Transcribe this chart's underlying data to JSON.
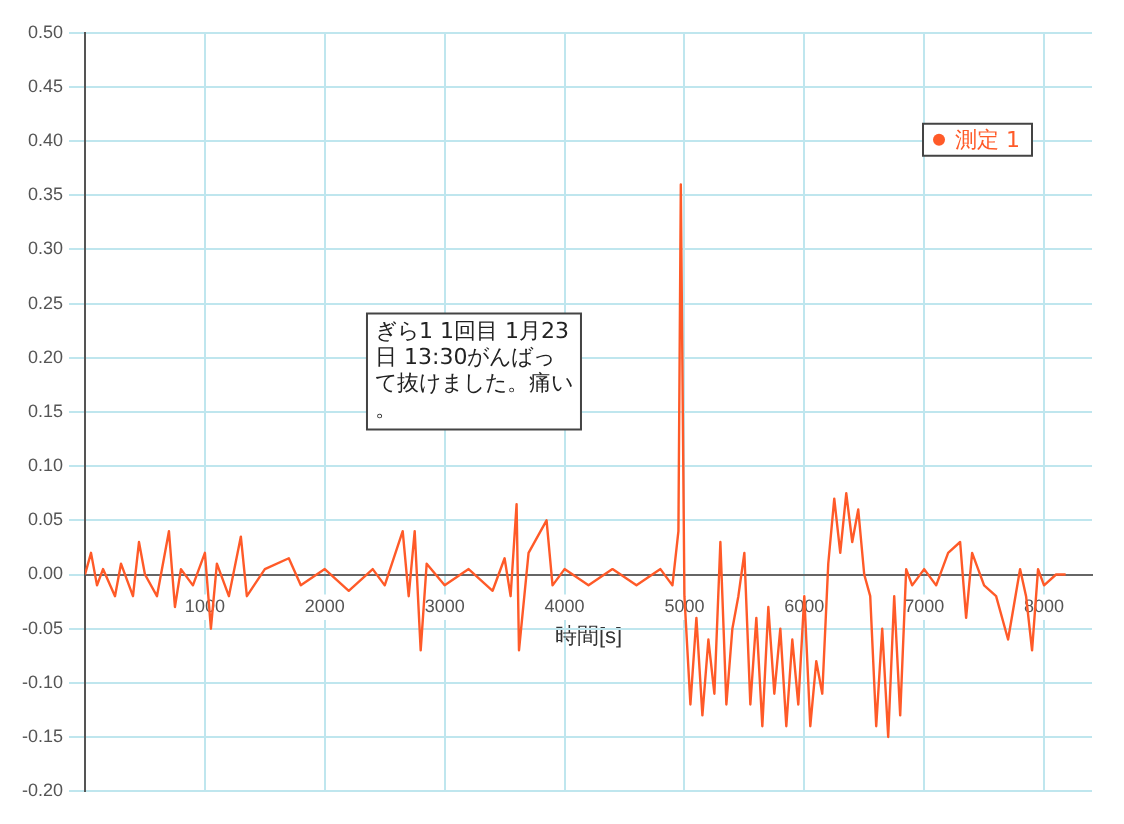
{
  "chart_data": {
    "type": "line",
    "xlabel": "時間[s]",
    "annotations": [
      "ぎら1 1回目 1月23日 13:30がんばって抜けました。痛い。"
    ],
    "xlim": [
      0,
      8400
    ],
    "xticks": [
      1000,
      2000,
      3000,
      4000,
      5000,
      6000,
      7000,
      8000
    ],
    "ylim": [
      -0.2,
      0.5
    ],
    "yticks": [
      {
        "value": -0.2,
        "label": "-0.20"
      },
      {
        "value": -0.15,
        "label": "-0.15"
      },
      {
        "value": -0.1,
        "label": "-0.10"
      },
      {
        "value": -0.05,
        "label": "-0.05"
      },
      {
        "value": 0,
        "label": "0.00"
      },
      {
        "value": 0.05,
        "label": "0.05"
      },
      {
        "value": 0.1,
        "label": "0.10"
      },
      {
        "value": 0.15,
        "label": "0.15"
      },
      {
        "value": 0.2,
        "label": "0.20"
      },
      {
        "value": 0.25,
        "label": "0.25"
      },
      {
        "value": 0.3,
        "label": "0.30"
      },
      {
        "value": 0.35,
        "label": "0.35"
      },
      {
        "value": 0.4,
        "label": "0.40"
      },
      {
        "value": 0.45,
        "label": "0.45"
      },
      {
        "value": 0.5,
        "label": "0.50"
      }
    ],
    "grid": true,
    "legend": "top right",
    "series": [
      {
        "name": "測定 1",
        "color": "#ff5a28",
        "x": [
          0,
          50,
          100,
          150,
          250,
          300,
          400,
          450,
          500,
          600,
          700,
          750,
          800,
          900,
          1000,
          1050,
          1100,
          1200,
          1300,
          1350,
          1500,
          1700,
          1800,
          2000,
          2200,
          2400,
          2500,
          2650,
          2700,
          2750,
          2800,
          2850,
          3000,
          3200,
          3400,
          3500,
          3550,
          3600,
          3620,
          3700,
          3850,
          3900,
          4000,
          4200,
          4400,
          4600,
          4800,
          4900,
          4950,
          4970,
          5000,
          5050,
          5100,
          5150,
          5200,
          5250,
          5300,
          5350,
          5400,
          5450,
          5500,
          5550,
          5600,
          5650,
          5700,
          5750,
          5800,
          5850,
          5900,
          5950,
          6000,
          6050,
          6100,
          6150,
          6200,
          6250,
          6300,
          6350,
          6400,
          6450,
          6500,
          6550,
          6600,
          6650,
          6700,
          6750,
          6800,
          6850,
          6900,
          7000,
          7100,
          7200,
          7300,
          7350,
          7400,
          7450,
          7500,
          7600,
          7700,
          7800,
          7850,
          7900,
          7950,
          8000,
          8100,
          8180
        ],
        "values": [
          0,
          0.02,
          -0.01,
          0.005,
          -0.02,
          0.01,
          -0.02,
          0.03,
          0,
          -0.02,
          0.04,
          -0.03,
          0.005,
          -0.01,
          0.02,
          -0.05,
          0.01,
          -0.02,
          0.035,
          -0.02,
          0.005,
          0.015,
          -0.01,
          0.005,
          -0.015,
          0.005,
          -0.01,
          0.04,
          -0.02,
          0.04,
          -0.07,
          0.01,
          -0.01,
          0.005,
          -0.015,
          0.015,
          -0.02,
          0.065,
          -0.07,
          0.02,
          0.05,
          -0.01,
          0.005,
          -0.01,
          0.005,
          -0.01,
          0.005,
          -0.01,
          0.04,
          0.36,
          -0.02,
          -0.12,
          -0.04,
          -0.13,
          -0.06,
          -0.11,
          0.03,
          -0.12,
          -0.05,
          -0.02,
          0.02,
          -0.12,
          -0.04,
          -0.14,
          -0.03,
          -0.11,
          -0.05,
          -0.14,
          -0.06,
          -0.12,
          -0.02,
          -0.14,
          -0.08,
          -0.11,
          0.01,
          0.07,
          0.02,
          0.075,
          0.03,
          0.06,
          0,
          -0.02,
          -0.14,
          -0.05,
          -0.15,
          -0.02,
          -0.13,
          0.005,
          -0.01,
          0.005,
          -0.01,
          0.02,
          0.03,
          -0.04,
          0.02,
          0.005,
          -0.01,
          -0.02,
          -0.06,
          0.005,
          -0.02,
          -0.07,
          0.005,
          -0.01,
          0,
          0
        ]
      }
    ]
  }
}
